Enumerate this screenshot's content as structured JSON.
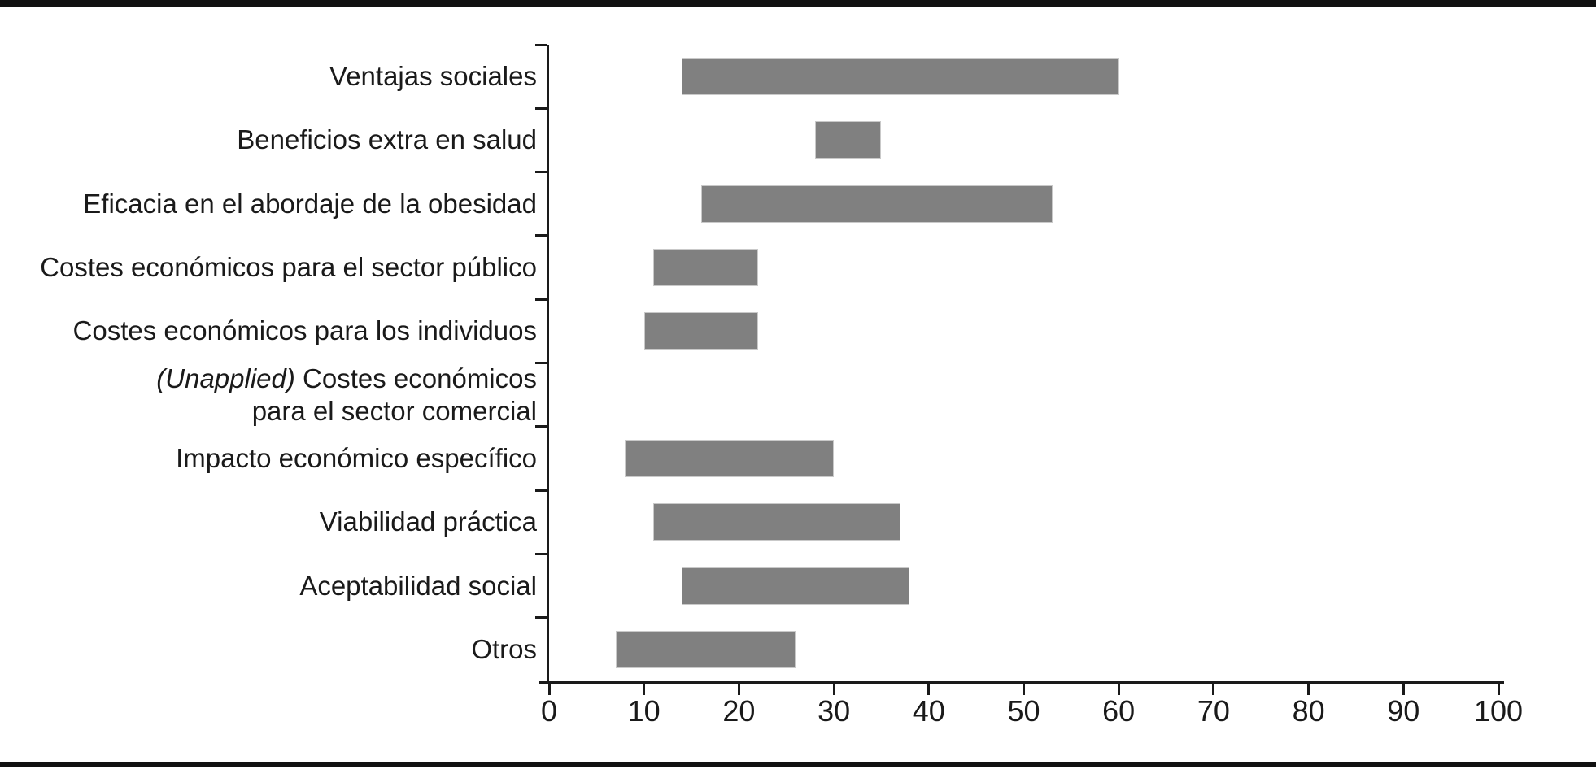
{
  "page": {
    "background_color": "#ffffff",
    "top_rule_color": "#111111",
    "bottom_rule_color": "#111111"
  },
  "chart_data": {
    "type": "bar",
    "subtype": "horizontal-range-bar",
    "title": "",
    "xlabel": "",
    "ylabel": "",
    "xlim": [
      0,
      100
    ],
    "xticks": [
      0,
      10,
      20,
      30,
      40,
      50,
      60,
      70,
      80,
      90,
      100
    ],
    "grid": false,
    "legend": false,
    "bar_color": "#808080",
    "axis_color": "#1a1a1a",
    "categories": [
      {
        "lines": [
          "Ventajas sociales"
        ]
      },
      {
        "lines": [
          "Beneficios extra en salud"
        ]
      },
      {
        "lines": [
          "Eficacia en el abordaje de la obesidad"
        ]
      },
      {
        "lines": [
          "Costes económicos para el sector público"
        ]
      },
      {
        "lines": [
          "Costes económicos para los individuos"
        ]
      },
      {
        "italic_prefix": "(Unapplied)",
        "lines": [
          " Costes económicos",
          "para el sector comercial"
        ]
      },
      {
        "lines": [
          "Impacto económico específico"
        ]
      },
      {
        "lines": [
          "Viabilidad práctica"
        ]
      },
      {
        "lines": [
          "Aceptabilidad social"
        ]
      },
      {
        "lines": [
          "Otros"
        ]
      }
    ],
    "bars": [
      {
        "start": 14,
        "end": 60
      },
      {
        "start": 28,
        "end": 35
      },
      {
        "start": 16,
        "end": 53
      },
      {
        "start": 11,
        "end": 22
      },
      {
        "start": 10,
        "end": 22
      },
      null,
      {
        "start": 8,
        "end": 30
      },
      {
        "start": 11,
        "end": 37
      },
      {
        "start": 14,
        "end": 38
      },
      {
        "start": 7,
        "end": 26
      }
    ]
  }
}
